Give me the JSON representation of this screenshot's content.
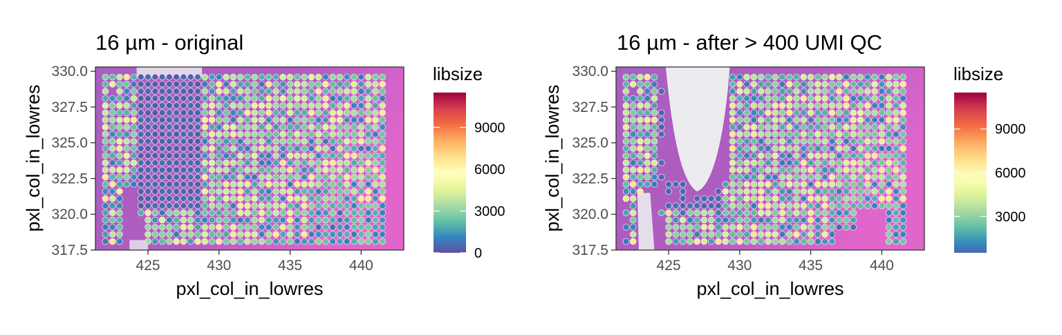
{
  "chart_data": [
    {
      "type": "scatter",
      "title": "16 µm - original",
      "xlabel": "pxl_col_in_lowres",
      "ylabel": "pxl_col_in_lowres",
      "xlim": [
        421.3,
        443.0
      ],
      "ylim": [
        317.5,
        330.3
      ],
      "xticks": [
        "425",
        "430",
        "435",
        "440"
      ],
      "yticks": [
        "317.5",
        "320.0",
        "322.5",
        "325.0",
        "327.5",
        "330.0"
      ],
      "grid": false,
      "spot_pitch": 0.5,
      "color_variable": "libsize",
      "legend": {
        "title": "libsize",
        "position": "right",
        "ticks": [
          "0",
          "3000",
          "6000",
          "9000"
        ],
        "range": [
          0,
          11500
        ]
      },
      "filtered": false,
      "colors": {
        "panel_bg": "#b560bd",
        "void": "#ecebf0",
        "spot_stroke": "#f2f2f2"
      }
    },
    {
      "type": "scatter",
      "title": "16 µm - after > 400 UMI QC",
      "xlabel": "pxl_col_in_lowres",
      "ylabel": "pxl_col_in_lowres",
      "xlim": [
        421.3,
        443.0
      ],
      "ylim": [
        317.5,
        330.3
      ],
      "xticks": [
        "425",
        "430",
        "435",
        "440"
      ],
      "yticks": [
        "317.5",
        "320.0",
        "322.5",
        "325.0",
        "327.5",
        "330.0"
      ],
      "grid": false,
      "spot_pitch": 0.5,
      "color_variable": "libsize",
      "legend": {
        "title": "libsize",
        "position": "right",
        "ticks": [
          "3000",
          "6000",
          "9000"
        ],
        "range": [
          500,
          11500
        ]
      },
      "filtered": true,
      "colors": {
        "panel_bg": "#b560bd",
        "void": "#ecebf0",
        "spot_stroke": "#f2f2f2"
      }
    }
  ],
  "palette": [
    "#5e4fa2",
    "#3288bd",
    "#66c2a5",
    "#abdda4",
    "#e6f598",
    "#ffffbf",
    "#fee08b",
    "#fdae61",
    "#f46d43",
    "#d53e4f",
    "#9e0142"
  ]
}
